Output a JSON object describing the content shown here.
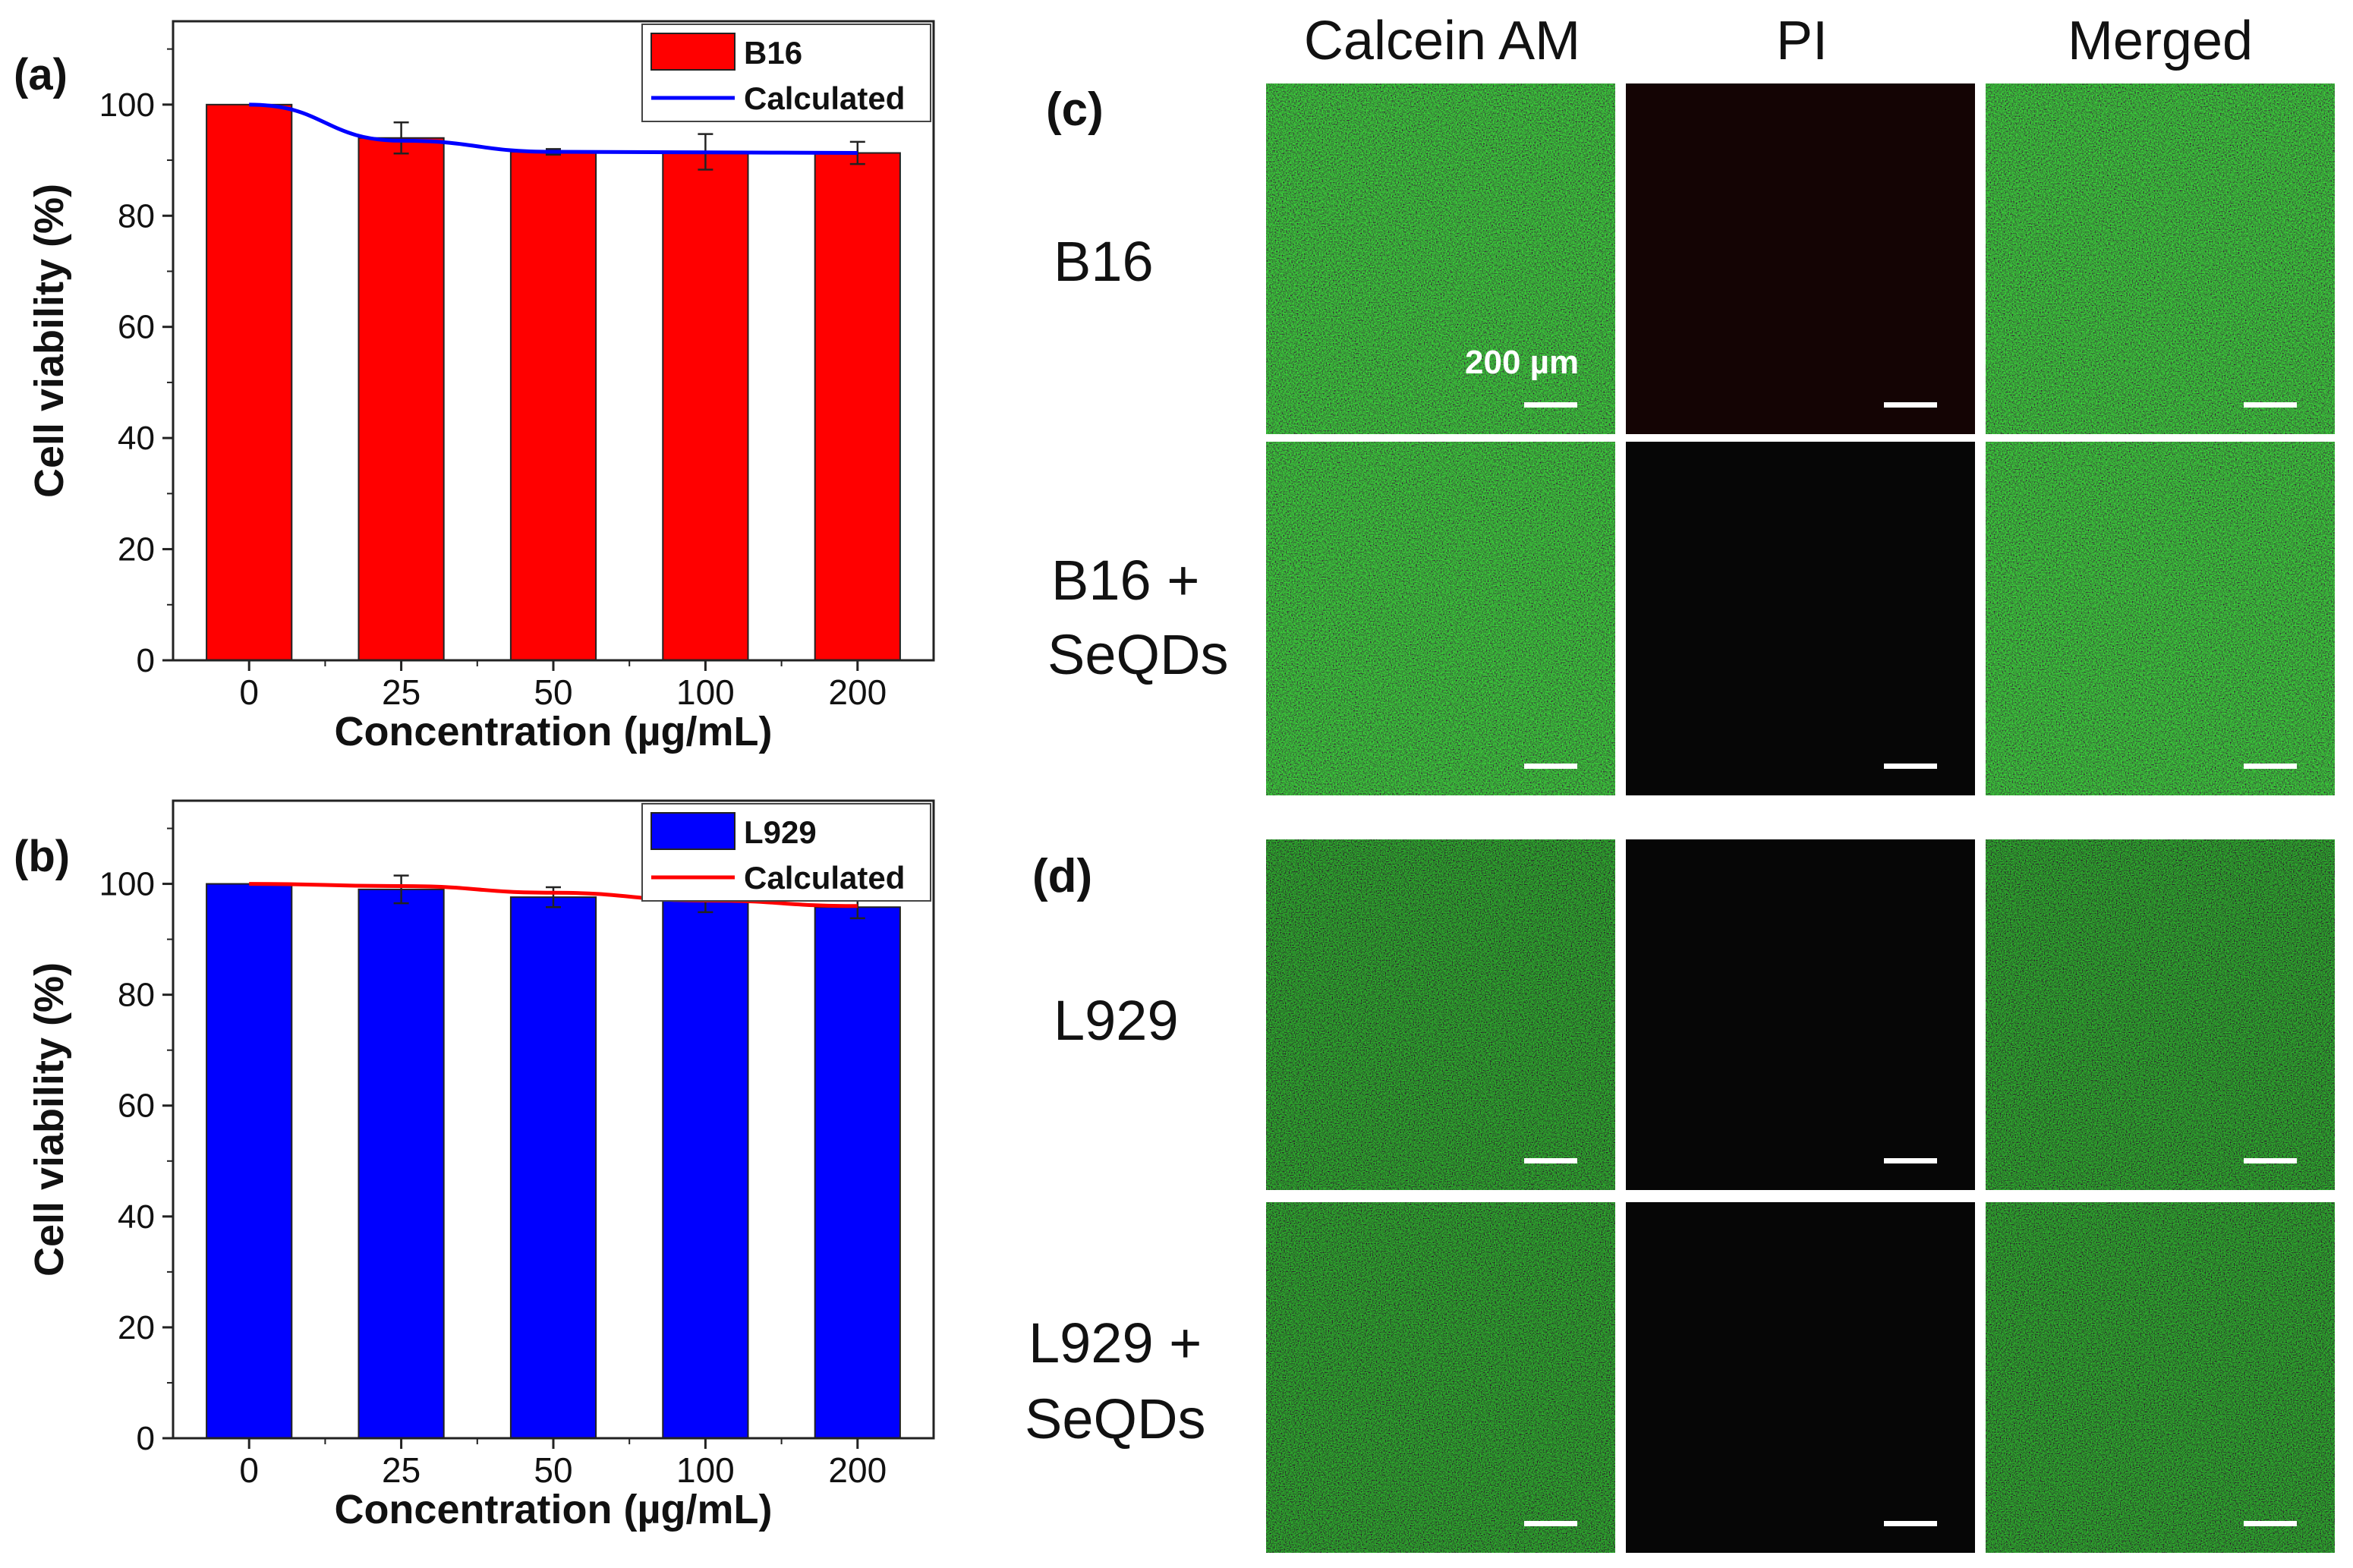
{
  "panels": {
    "a": {
      "panel_label": "(a)",
      "chart_data": {
        "type": "bar",
        "categories": [
          "0",
          "25",
          "50",
          "100",
          "200"
        ],
        "series": [
          {
            "name": "B16",
            "values": [
              100,
              94,
              91.5,
              91.5,
              91.3
            ],
            "errors": [
              0,
              2.8,
              0.5,
              3.2,
              2.0
            ],
            "color": "#ff0000"
          }
        ],
        "line": {
          "name": "Calculated",
          "values": [
            100,
            93.5,
            91.5,
            91.4,
            91.3
          ],
          "color": "#0000ff"
        },
        "xlabel": "Concentration (µg/mL)",
        "ylabel": "Cell viability (%)",
        "ylim": [
          0,
          115
        ],
        "yticks": [
          "0",
          "20",
          "40",
          "60",
          "80",
          "100"
        ],
        "legend": "top-right"
      }
    },
    "b": {
      "panel_label": "(b)",
      "chart_data": {
        "type": "bar",
        "categories": [
          "0",
          "25",
          "50",
          "100",
          "200"
        ],
        "series": [
          {
            "name": "L929",
            "values": [
              100,
              99,
              97.6,
              97.3,
              95.8
            ],
            "errors": [
              0,
              2.5,
              1.8,
              2.4,
              2.0
            ],
            "color": "#0000ff"
          }
        ],
        "line": {
          "name": "Calculated",
          "values": [
            100,
            99.6,
            98.4,
            97.0,
            96.0
          ],
          "color": "#ff0000"
        },
        "xlabel": "Concentration (µg/mL)",
        "ylabel": "Cell viability (%)",
        "ylim": [
          0,
          115
        ],
        "yticks": [
          "0",
          "20",
          "40",
          "60",
          "80",
          "100"
        ],
        "legend": "top-right"
      }
    }
  },
  "micrographs": {
    "columns": [
      "Calcein AM",
      "PI",
      "Merged"
    ],
    "panel_c_label": "(c)",
    "panel_d_label": "(d)",
    "row_labels": [
      {
        "line1": "B16",
        "line2": ""
      },
      {
        "line1": "B16 +",
        "line2": "SeQDs"
      },
      {
        "line1": "L929",
        "line2": ""
      },
      {
        "line1": "L929 +",
        "line2": "SeQDs"
      }
    ],
    "scale_bar": "200 µm",
    "colors": {
      "live": "#22c41e",
      "dead_red_bg": "#140404",
      "dark": "#060606"
    }
  }
}
